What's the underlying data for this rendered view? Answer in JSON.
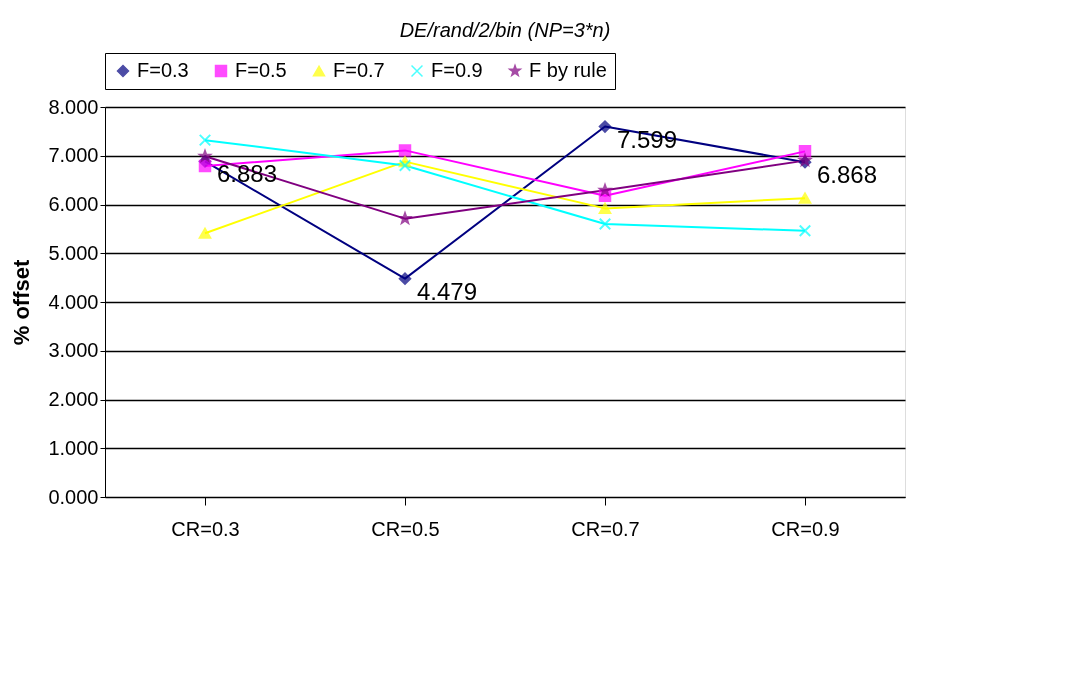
{
  "chart_data": {
    "type": "line",
    "title": "DE/rand/2/bin (NP=3*n)",
    "ylabel": "% offset",
    "categories": [
      "CR=0.3",
      "CR=0.5",
      "CR=0.7",
      "CR=0.9"
    ],
    "series": [
      {
        "name": "F=0.3",
        "color": "#000080",
        "marker": "diamond",
        "values": [
          6.883,
          4.479,
          7.599,
          6.868
        ],
        "value_labels": [
          "6.883",
          "4.479",
          "7.599",
          "6.868"
        ]
      },
      {
        "name": "F=0.5",
        "color": "#ff00ff",
        "marker": "square",
        "values": [
          6.79,
          7.11,
          6.18,
          7.09
        ]
      },
      {
        "name": "F=0.7",
        "color": "#ffff00",
        "marker": "triangle",
        "values": [
          5.41,
          6.88,
          5.92,
          6.13
        ]
      },
      {
        "name": "F=0.9",
        "color": "#00ffff",
        "marker": "cross",
        "values": [
          7.32,
          6.8,
          5.6,
          5.46
        ]
      },
      {
        "name": "F by rule",
        "color": "#800080",
        "marker": "star",
        "values": [
          6.99,
          5.71,
          6.29,
          6.9
        ]
      }
    ],
    "ylim": [
      0,
      8
    ],
    "yticks": [
      {
        "value": 0,
        "label": "0.000"
      },
      {
        "value": 1,
        "label": "1.000"
      },
      {
        "value": 2,
        "label": "2.000"
      },
      {
        "value": 3,
        "label": "3.000"
      },
      {
        "value": 4,
        "label": "4.000"
      },
      {
        "value": 5,
        "label": "5.000"
      },
      {
        "value": 6,
        "label": "6.000"
      },
      {
        "value": 7,
        "label": "7.000"
      },
      {
        "value": 8,
        "label": "8.000"
      }
    ],
    "grid": "y",
    "legend": "top",
    "line_style": "solid"
  }
}
